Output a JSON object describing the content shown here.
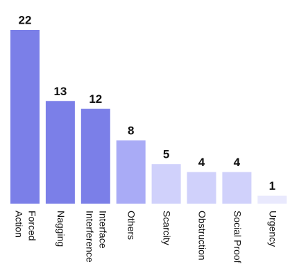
{
  "chart_data": {
    "type": "bar",
    "categories": [
      "Forced\nAction",
      "Nagging",
      "Interface\nInterference",
      "Others",
      "Scarcity",
      "Obstruction",
      "Social Proof",
      "Urgency"
    ],
    "values": [
      22,
      13,
      12,
      8,
      5,
      4,
      4,
      1
    ],
    "colors": [
      "#7b7fe8",
      "#7b7fe8",
      "#7b7fe8",
      "#a9abf6",
      "#d0d1fb",
      "#d0d1fb",
      "#d0d1fb",
      "#e9e9fd"
    ]
  }
}
